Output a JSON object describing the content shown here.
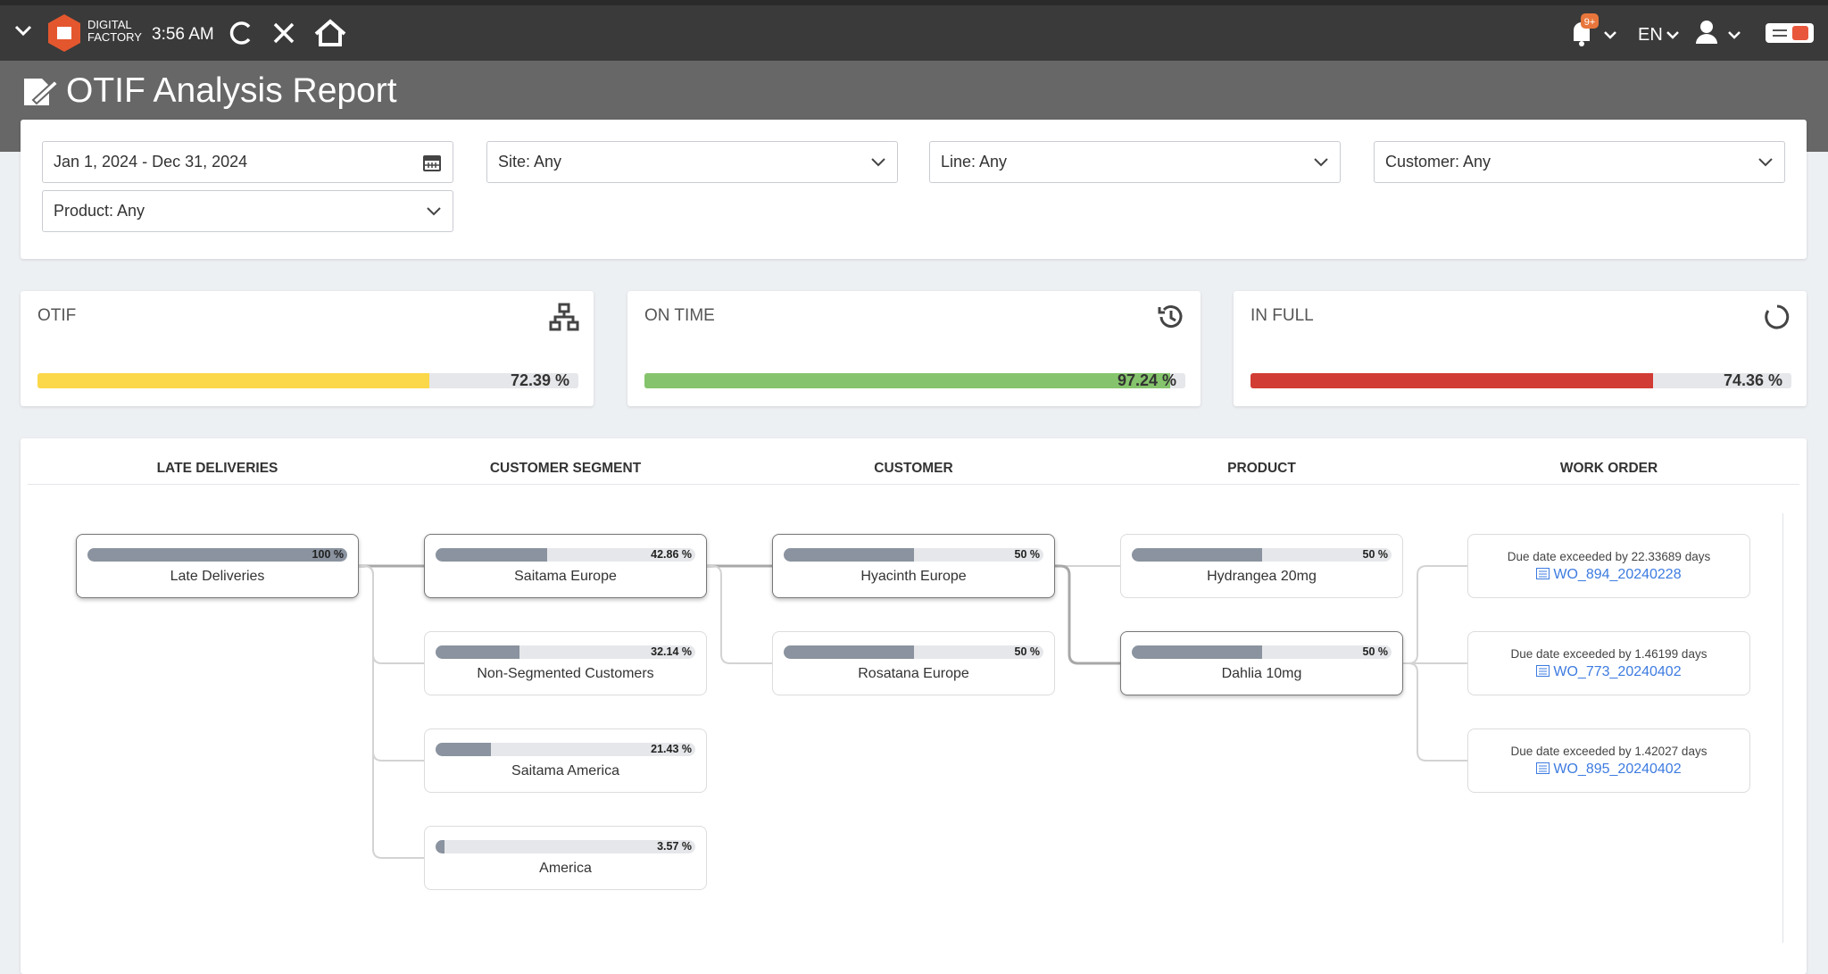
{
  "header": {
    "brand": [
      "DIGITAL",
      "FACTORY"
    ],
    "time": "3:56 AM",
    "notifications": "9+",
    "language": "EN"
  },
  "page_title": "OTIF Analysis Report",
  "filters": {
    "date_range": "Jan 1, 2024 - Dec 31, 2024",
    "site": "Site: Any",
    "line": "Line: Any",
    "customer": "Customer: Any",
    "product": "Product: Any"
  },
  "kpis": [
    {
      "title": "OTIF",
      "value": 72.39,
      "label": "72.39 %",
      "color": "#fbd84a"
    },
    {
      "title": "ON TIME",
      "value": 97.24,
      "label": "97.24 %",
      "color": "#85c46c"
    },
    {
      "title": "IN FULL",
      "value": 74.36,
      "label": "74.36 %",
      "color": "#d13c34"
    }
  ],
  "tree": {
    "columns": [
      "LATE DELIVERIES",
      "CUSTOMER SEGMENT",
      "CUSTOMER",
      "PRODUCT",
      "WORK ORDER"
    ],
    "levels": [
      [
        {
          "label": "Late Deliveries",
          "value": 100,
          "value_label": "100 %",
          "selected": true
        }
      ],
      [
        {
          "label": "Saitama Europe",
          "value": 42.86,
          "value_label": "42.86 %",
          "selected": true
        },
        {
          "label": "Non-Segmented Customers",
          "value": 32.14,
          "value_label": "32.14 %",
          "selected": false
        },
        {
          "label": "Saitama America",
          "value": 21.43,
          "value_label": "21.43 %",
          "selected": false
        },
        {
          "label": "America",
          "value": 3.57,
          "value_label": "3.57 %",
          "selected": false
        }
      ],
      [
        {
          "label": "Hyacinth Europe",
          "value": 50,
          "value_label": "50 %",
          "selected": true
        },
        {
          "label": "Rosatana Europe",
          "value": 50,
          "value_label": "50 %",
          "selected": false
        }
      ],
      [
        {
          "label": "Hydrangea 20mg",
          "value": 50,
          "value_label": "50 %",
          "selected": false
        },
        {
          "label": "Dahlia 10mg",
          "value": 50,
          "value_label": "50 %",
          "selected": true
        }
      ]
    ],
    "work_orders": [
      {
        "note": "Due date exceeded by 22.33689 days",
        "link": "WO_894_20240228"
      },
      {
        "note": "Due date exceeded by 1.46199 days",
        "link": "WO_773_20240402"
      },
      {
        "note": "Due date exceeded by 1.42027 days",
        "link": "WO_895_20240402"
      }
    ]
  }
}
